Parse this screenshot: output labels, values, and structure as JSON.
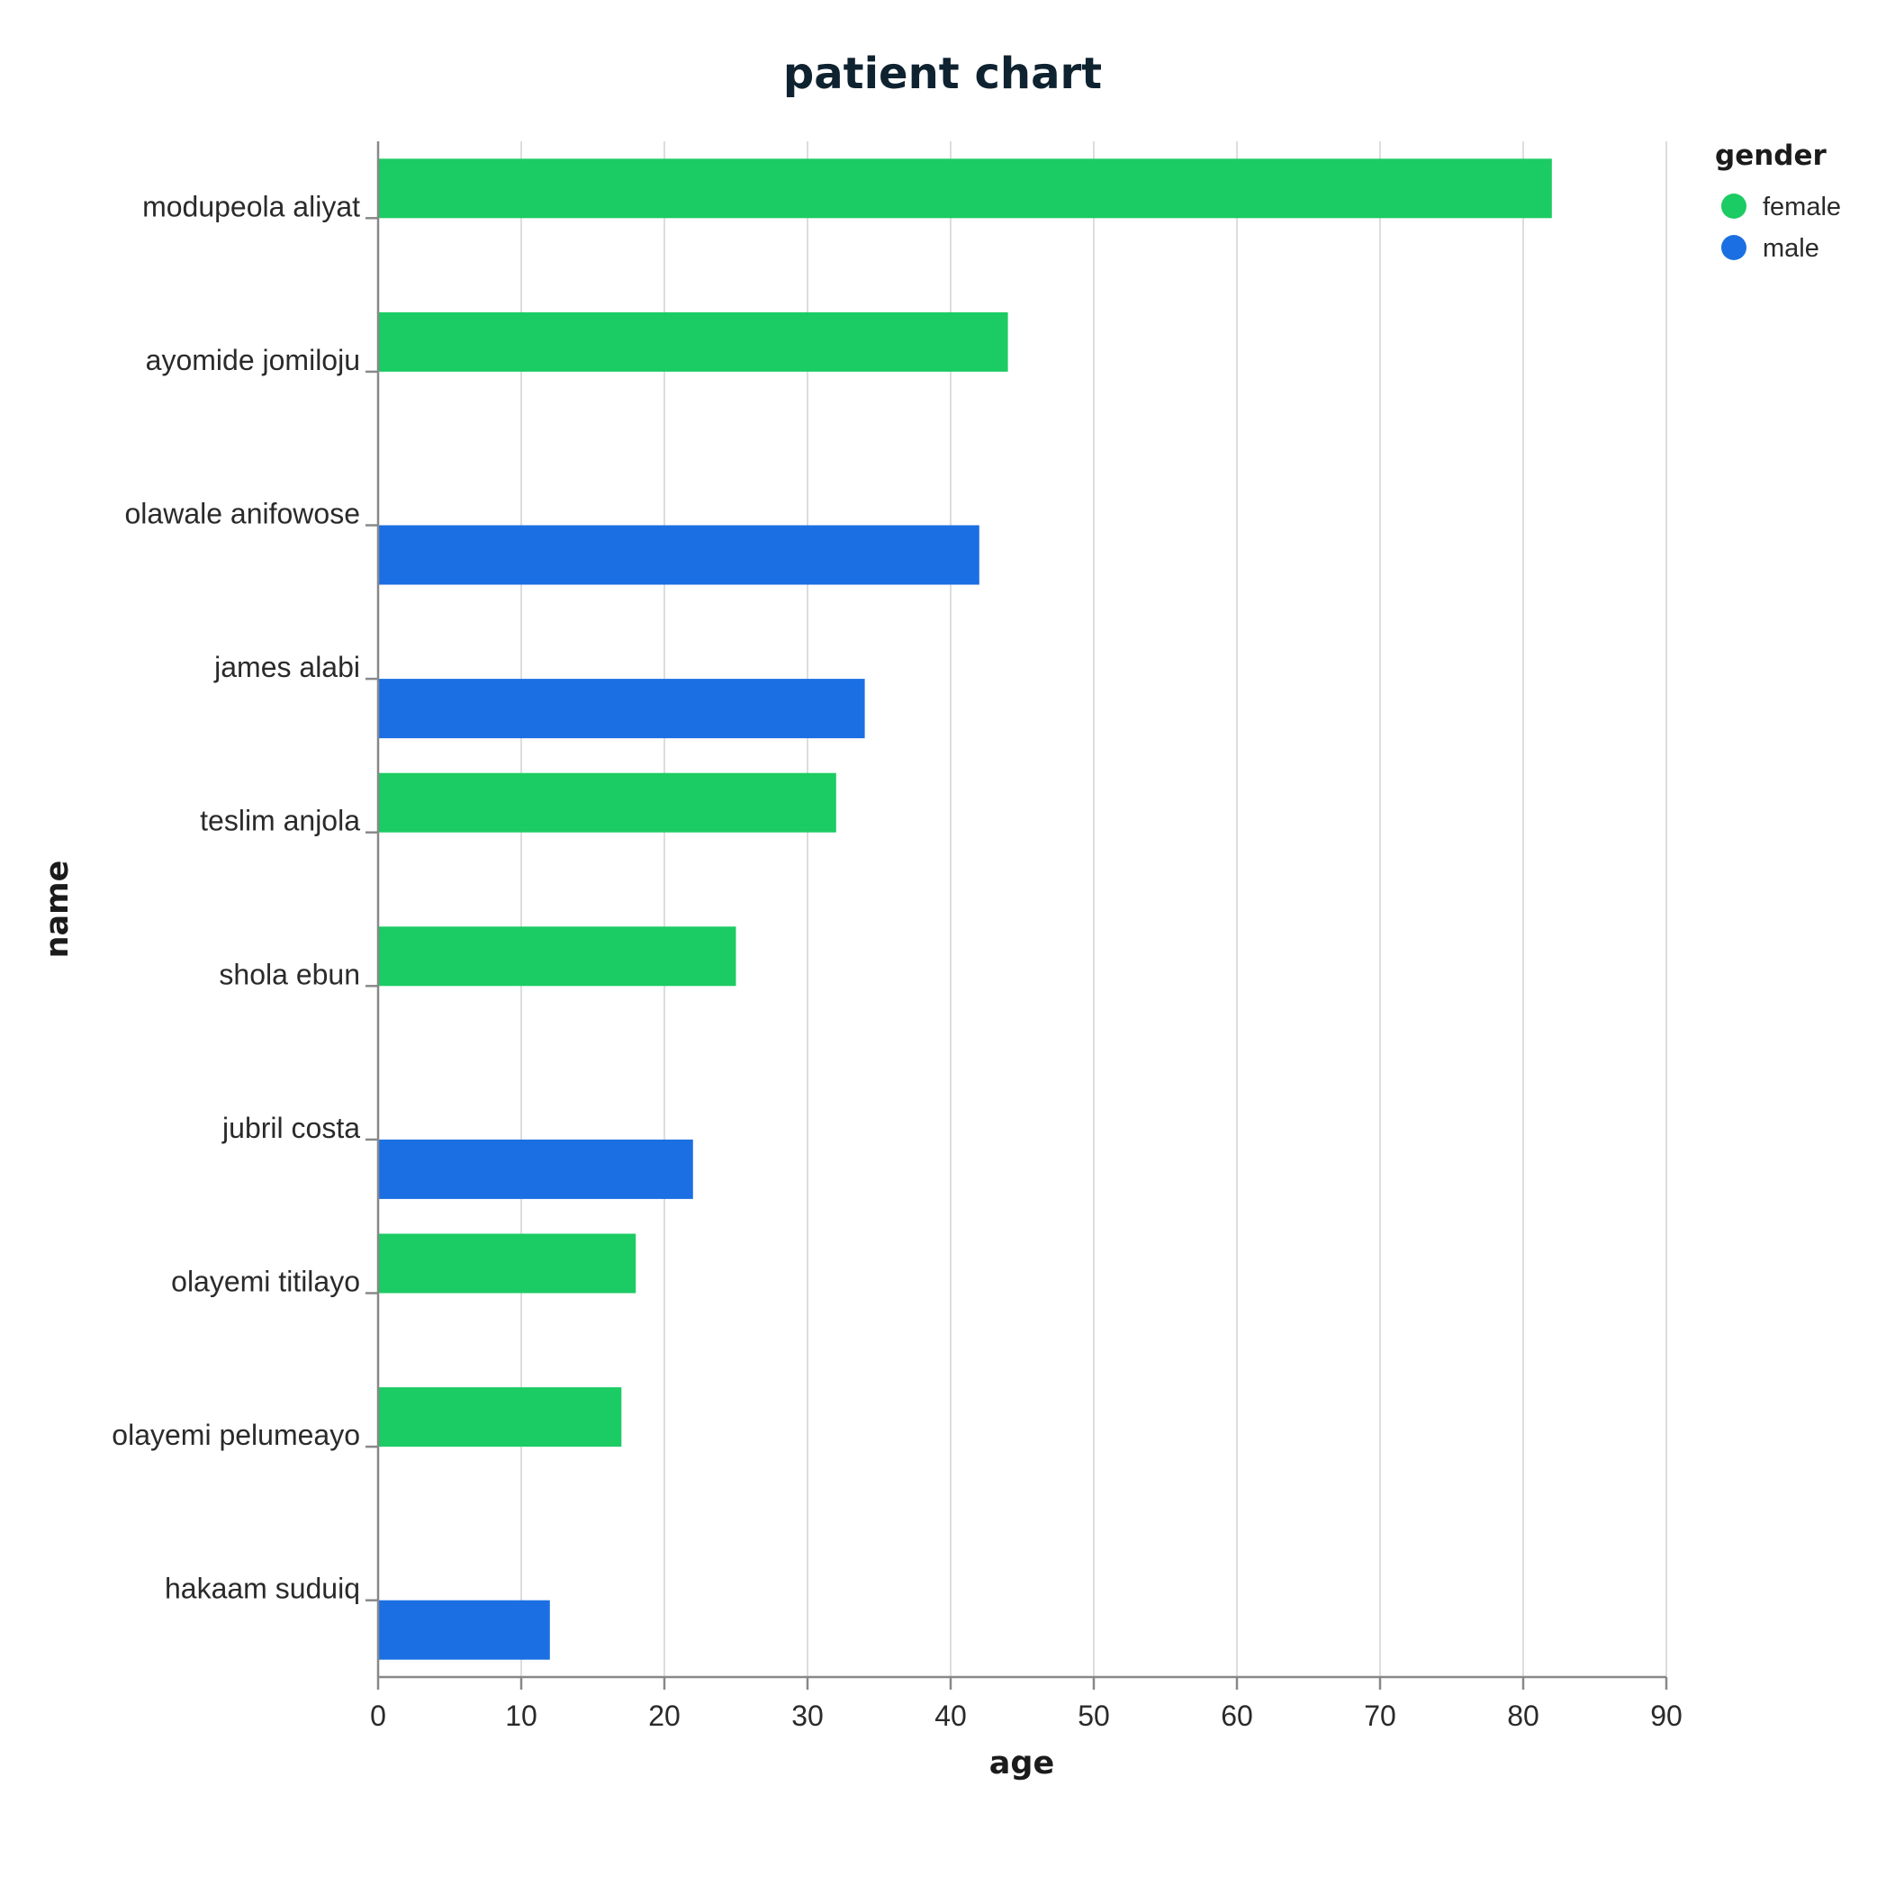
{
  "chart_data": {
    "type": "bar",
    "orientation": "horizontal",
    "title": "patient chart",
    "xlabel": "age",
    "ylabel": "name",
    "xlim": [
      0,
      90
    ],
    "x_ticks": [
      "0",
      "10",
      "20",
      "30",
      "40",
      "50",
      "60",
      "70",
      "80",
      "90"
    ],
    "grid": true,
    "legend": {
      "title": "gender",
      "placement": "top-right",
      "entries": [
        {
          "label": "female",
          "color": "#1bcb63"
        },
        {
          "label": "male",
          "color": "#1b6fe3"
        }
      ]
    },
    "categories": [
      "modupeola aliyat",
      "ayomide jomiloju",
      "olawale anifowose",
      "james alabi",
      "teslim anjola",
      "shola ebun",
      "jubril costa",
      "olayemi titilayo",
      "olayemi pelumeayo",
      "hakaam suduiq"
    ],
    "bars": [
      {
        "name": "modupeola aliyat",
        "age": 82,
        "gender": "female"
      },
      {
        "name": "ayomide jomiloju",
        "age": 44,
        "gender": "female"
      },
      {
        "name": "olawale anifowose",
        "age": 42,
        "gender": "male"
      },
      {
        "name": "james alabi",
        "age": 34,
        "gender": "male"
      },
      {
        "name": "teslim anjola",
        "age": 32,
        "gender": "female"
      },
      {
        "name": "shola ebun",
        "age": 25,
        "gender": "female"
      },
      {
        "name": "jubril costa",
        "age": 22,
        "gender": "male"
      },
      {
        "name": "olayemi titilayo",
        "age": 18,
        "gender": "female"
      },
      {
        "name": "olayemi pelumeayo",
        "age": 17,
        "gender": "female"
      },
      {
        "name": "hakaam suduiq",
        "age": 12,
        "gender": "male"
      }
    ]
  }
}
